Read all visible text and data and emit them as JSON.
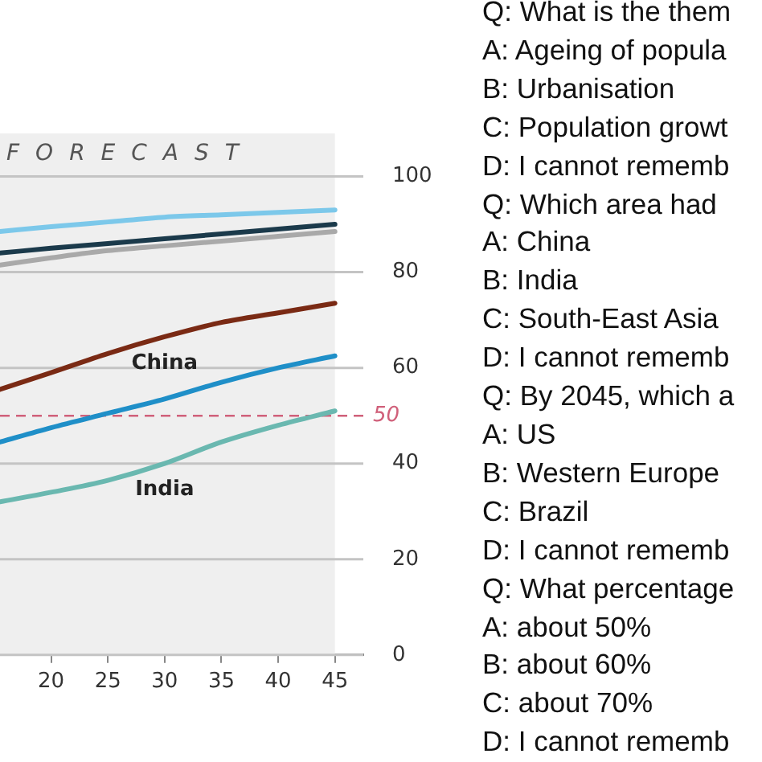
{
  "chart_data": {
    "type": "line",
    "x": [
      15.5,
      20,
      25,
      30,
      35,
      40,
      45
    ],
    "series": [
      {
        "color": "#7cc8ea",
        "values": [
          88.5,
          89.5,
          90.5,
          91.5,
          92,
          92.5,
          93
        ]
      },
      {
        "color": "#1b3a4b",
        "values": [
          84,
          85,
          86,
          87,
          88,
          89,
          90
        ]
      },
      {
        "color": "#a9a9a9",
        "values": [
          81.5,
          83,
          84.5,
          85.5,
          86.5,
          87.5,
          88.5
        ]
      },
      {
        "name": "China",
        "color": "#7a2a14",
        "values": [
          55.5,
          59,
          63,
          66.5,
          69.5,
          71.5,
          73.5
        ]
      },
      {
        "color": "#1f8fc8",
        "values": [
          44.5,
          47.5,
          50.5,
          53.5,
          57,
          60,
          62.5
        ]
      },
      {
        "name": "India",
        "color": "#6ab8b0",
        "values": [
          32,
          34,
          36.5,
          40,
          44.5,
          48,
          51
        ]
      }
    ],
    "xlim": [
      15.5,
      47.5
    ],
    "xticks": [
      20,
      25,
      30,
      35,
      40,
      45
    ],
    "ylim": [
      0,
      109
    ],
    "yticks": [
      0,
      20,
      40,
      60,
      80,
      100
    ],
    "grid": "y",
    "legend": false,
    "marker": "none",
    "line_style": "solid",
    "ref_lines": [
      {
        "axis": "y",
        "value": 50,
        "label": "50",
        "color": "#d0607a",
        "line_style": "dashed"
      }
    ],
    "bands": [
      {
        "axis": "x",
        "from": 15.5,
        "to": 45,
        "label": "FORECAST",
        "color": "#efefef"
      }
    ],
    "annotations": [
      "Q: What is the them",
      "A: Ageing of popula",
      "B: Urbanisation",
      "C: Population growt",
      "D: I cannot rememb",
      "Q: Which area had",
      "A: China",
      "B: India",
      "C: South-East Asia",
      "D: I cannot rememb",
      "Q: By 2045, which a",
      "A: US",
      "B: Western Europe",
      "C: Brazil",
      "D: I cannot rememb",
      "Q: What percentage",
      "A: about 50%",
      "B: about 60%",
      "C: about 70%",
      "D: I cannot rememb"
    ]
  }
}
